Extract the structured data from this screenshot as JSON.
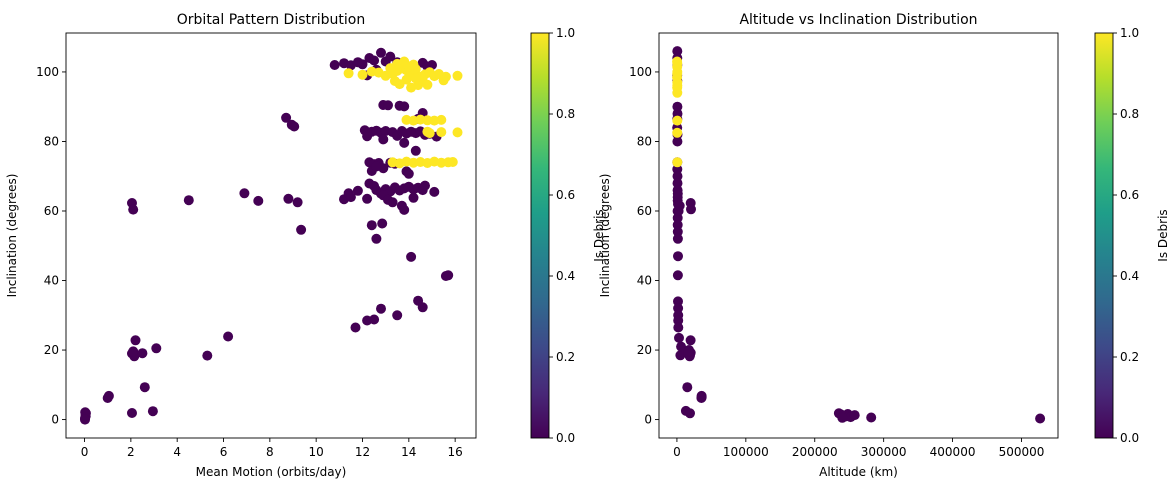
{
  "chart_data": [
    {
      "type": "scatter",
      "title": "Orbital Pattern Distribution",
      "xlabel": "Mean Motion (orbits/day)",
      "ylabel": "Inclination (degrees)",
      "xlim": [
        -0.8,
        16.9
      ],
      "ylim": [
        -5.3,
        111.2
      ],
      "xticks": [
        0,
        2,
        4,
        6,
        8,
        10,
        12,
        14,
        16
      ],
      "yticks": [
        0,
        20,
        40,
        60,
        80,
        100
      ],
      "colorbar": {
        "label": "Is Debris",
        "min": 0.0,
        "max": 1.0,
        "ticks": [
          "0.0",
          "0.2",
          "0.4",
          "0.6",
          "0.8",
          "1.0"
        ]
      },
      "grid": false,
      "series": [
        {
          "is_debris": 0,
          "color": "#440154",
          "points": [
            [
              0.02,
              0.3
            ],
            [
              0.03,
              0.6
            ],
            [
              0.05,
              1.0
            ],
            [
              0.04,
              1.4
            ],
            [
              0.06,
              1.8
            ],
            [
              0.03,
              2.1
            ],
            [
              0.02,
              0.0
            ],
            [
              1.0,
              6.2
            ],
            [
              1.05,
              6.8
            ],
            [
              2.05,
              19.0
            ],
            [
              2.15,
              18.2
            ],
            [
              2.1,
              19.6
            ],
            [
              2.2,
              22.8
            ],
            [
              2.5,
              19.1
            ],
            [
              2.6,
              9.3
            ],
            [
              2.05,
              1.9
            ],
            [
              2.95,
              2.4
            ],
            [
              3.1,
              20.5
            ],
            [
              5.3,
              18.4
            ],
            [
              6.2,
              23.9
            ],
            [
              2.05,
              62.3
            ],
            [
              2.1,
              60.4
            ],
            [
              4.5,
              63.1
            ],
            [
              6.9,
              65.1
            ],
            [
              7.5,
              62.9
            ],
            [
              8.8,
              63.5
            ],
            [
              9.2,
              62.5
            ],
            [
              9.35,
              54.6
            ],
            [
              8.7,
              86.8
            ],
            [
              8.95,
              84.8
            ],
            [
              9.05,
              84.3
            ],
            [
              11.7,
              26.5
            ],
            [
              12.2,
              28.5
            ],
            [
              12.5,
              28.8
            ],
            [
              12.8,
              31.9
            ],
            [
              13.5,
              30.0
            ],
            [
              14.4,
              34.2
            ],
            [
              14.6,
              32.3
            ],
            [
              14.1,
              46.8
            ],
            [
              15.6,
              41.3
            ],
            [
              15.7,
              41.5
            ],
            [
              11.2,
              63.4
            ],
            [
              11.4,
              65.1
            ],
            [
              11.5,
              64.0
            ],
            [
              11.8,
              65.8
            ],
            [
              12.2,
              63.5
            ],
            [
              12.3,
              67.9
            ],
            [
              12.5,
              67.2
            ],
            [
              12.6,
              66.0
            ],
            [
              12.8,
              65.0
            ],
            [
              13.0,
              66.3
            ],
            [
              13.2,
              65.6
            ],
            [
              13.4,
              66.8
            ],
            [
              13.6,
              65.9
            ],
            [
              13.8,
              66.5
            ],
            [
              14.0,
              67.0
            ],
            [
              14.2,
              66.2
            ],
            [
              14.4,
              66.7
            ],
            [
              14.6,
              66.0
            ],
            [
              14.7,
              67.3
            ],
            [
              12.9,
              64.5
            ],
            [
              13.1,
              63.2
            ],
            [
              13.3,
              62.5
            ],
            [
              13.7,
              61.5
            ],
            [
              13.8,
              60.3
            ],
            [
              14.2,
              63.8
            ],
            [
              15.1,
              65.5
            ],
            [
              12.4,
              55.9
            ],
            [
              12.6,
              52.0
            ],
            [
              12.85,
              56.4
            ],
            [
              12.3,
              74.0
            ],
            [
              12.5,
              73.5
            ],
            [
              12.7,
              73.8
            ],
            [
              12.9,
              72.3
            ],
            [
              13.2,
              73.9
            ],
            [
              13.4,
              73.6
            ],
            [
              13.9,
              71.4
            ],
            [
              14.0,
              70.7
            ],
            [
              12.4,
              71.5
            ],
            [
              12.6,
              72.8
            ],
            [
              12.1,
              83.2
            ],
            [
              12.2,
              81.5
            ],
            [
              12.4,
              82.8
            ],
            [
              12.6,
              83.1
            ],
            [
              12.8,
              82.5
            ],
            [
              13.0,
              83.0
            ],
            [
              13.3,
              82.7
            ],
            [
              13.5,
              81.6
            ],
            [
              13.7,
              83.0
            ],
            [
              13.9,
              82.3
            ],
            [
              14.1,
              82.8
            ],
            [
              14.3,
              82.4
            ],
            [
              14.5,
              82.9
            ],
            [
              14.7,
              81.9
            ],
            [
              14.9,
              82.2
            ],
            [
              15.2,
              81.4
            ],
            [
              12.9,
              80.6
            ],
            [
              13.8,
              79.6
            ],
            [
              14.3,
              77.3
            ],
            [
              14.6,
              88.2
            ],
            [
              14.4,
              86.5
            ],
            [
              12.9,
              90.5
            ],
            [
              13.1,
              90.4
            ],
            [
              13.6,
              90.3
            ],
            [
              13.8,
              90.1
            ],
            [
              10.8,
              102.0
            ],
            [
              11.2,
              102.5
            ],
            [
              11.5,
              101.9
            ],
            [
              11.8,
              102.8
            ],
            [
              12.0,
              102.2
            ],
            [
              12.3,
              104.0
            ],
            [
              12.5,
              103.3
            ],
            [
              12.8,
              105.5
            ],
            [
              13.0,
              103.0
            ],
            [
              13.2,
              104.4
            ],
            [
              13.5,
              102.8
            ],
            [
              12.2,
              99.0
            ],
            [
              12.6,
              100.6
            ],
            [
              14.6,
              102.6
            ],
            [
              14.8,
              101.6
            ],
            [
              15.0,
              102.0
            ]
          ]
        },
        {
          "is_debris": 1,
          "color": "#fde725",
          "points": [
            [
              11.4,
              99.6
            ],
            [
              12.0,
              99.2
            ],
            [
              12.4,
              100.1
            ],
            [
              12.7,
              99.8
            ],
            [
              13.0,
              98.9
            ],
            [
              13.3,
              99.5
            ],
            [
              13.5,
              100.3
            ],
            [
              13.7,
              101.0
            ],
            [
              13.9,
              100.5
            ],
            [
              14.1,
              99.7
            ],
            [
              14.3,
              100.8
            ],
            [
              14.5,
              98.6
            ],
            [
              14.7,
              99.3
            ],
            [
              14.9,
              99.9
            ],
            [
              15.1,
              98.8
            ],
            [
              15.3,
              99.4
            ],
            [
              15.6,
              98.6
            ],
            [
              16.1,
              98.9
            ],
            [
              13.4,
              97.4
            ],
            [
              13.6,
              96.5
            ],
            [
              13.9,
              97.8
            ],
            [
              14.1,
              95.5
            ],
            [
              14.4,
              96.2
            ],
            [
              14.6,
              97.5
            ],
            [
              14.8,
              96.3
            ],
            [
              13.5,
              102.3
            ],
            [
              13.8,
              103.0
            ],
            [
              14.2,
              102.1
            ],
            [
              14.0,
              101.6
            ],
            [
              13.2,
              101.1
            ],
            [
              15.5,
              97.6
            ],
            [
              14.3,
              98.1
            ],
            [
              13.3,
              74.0
            ],
            [
              13.6,
              73.7
            ],
            [
              13.9,
              74.2
            ],
            [
              14.2,
              73.9
            ],
            [
              14.5,
              74.1
            ],
            [
              14.8,
              73.8
            ],
            [
              15.1,
              74.2
            ],
            [
              15.4,
              73.9
            ],
            [
              15.7,
              74.0
            ],
            [
              15.9,
              74.1
            ],
            [
              13.9,
              86.2
            ],
            [
              14.2,
              86.0
            ],
            [
              14.5,
              86.3
            ],
            [
              14.8,
              86.1
            ],
            [
              15.1,
              86.0
            ],
            [
              15.4,
              86.2
            ],
            [
              14.9,
              82.4
            ],
            [
              15.4,
              82.7
            ],
            [
              16.1,
              82.6
            ],
            [
              14.8,
              82.8
            ]
          ]
        }
      ]
    },
    {
      "type": "scatter",
      "title": "Altitude vs Inclination Distribution",
      "xlabel": "Altitude (km)",
      "ylabel": "Inclination (degrees)",
      "xlim": [
        -26000,
        553000
      ],
      "ylim": [
        -5.3,
        111.2
      ],
      "xticks": [
        0,
        100000,
        200000,
        300000,
        400000,
        500000
      ],
      "yticks": [
        0,
        20,
        40,
        60,
        80,
        100
      ],
      "colorbar": {
        "label": "Is Debris",
        "min": 0.0,
        "max": 1.0,
        "ticks": [
          "0.0",
          "0.2",
          "0.4",
          "0.6",
          "0.8",
          "1.0"
        ]
      },
      "grid": false,
      "series": [
        {
          "is_debris": 0,
          "color": "#440154",
          "points": [
            [
              500,
              106.0
            ],
            [
              500,
              104.0
            ],
            [
              500,
              102.0
            ],
            [
              400,
              99.0
            ],
            [
              600,
              97.5
            ],
            [
              700,
              90.0
            ],
            [
              800,
              88.0
            ],
            [
              500,
              86.5
            ],
            [
              400,
              84.0
            ],
            [
              900,
              82.0
            ],
            [
              700,
              80.0
            ],
            [
              500,
              74.0
            ],
            [
              600,
              72.0
            ],
            [
              800,
              70.0
            ],
            [
              900,
              68.0
            ],
            [
              1000,
              66.0
            ],
            [
              1100,
              64.0
            ],
            [
              1200,
              63.0
            ],
            [
              1300,
              65.0
            ],
            [
              1500,
              62.0
            ],
            [
              1000,
              60.0
            ],
            [
              1100,
              58.0
            ],
            [
              1200,
              56.0
            ],
            [
              1300,
              54.0
            ],
            [
              1400,
              52.0
            ],
            [
              1500,
              47.0
            ],
            [
              1400,
              41.5
            ],
            [
              1600,
              34.0
            ],
            [
              1700,
              32.0
            ],
            [
              1800,
              30.0
            ],
            [
              1900,
              28.5
            ],
            [
              2000,
              26.5
            ],
            [
              3000,
              23.5
            ],
            [
              5000,
              18.5
            ],
            [
              6000,
              21.0
            ],
            [
              2500,
              60.0
            ],
            [
              4000,
              61.5
            ],
            [
              20000,
              62.3
            ],
            [
              20500,
              60.5
            ],
            [
              19000,
              18.5
            ],
            [
              20000,
              19.2
            ],
            [
              19800,
              22.8
            ],
            [
              17500,
              20.0
            ],
            [
              18500,
              18.2
            ],
            [
              16000,
              19.5
            ],
            [
              15000,
              9.3
            ],
            [
              13000,
              2.5
            ],
            [
              19000,
              1.8
            ],
            [
              35500,
              6.2
            ],
            [
              35800,
              6.8
            ],
            [
              36000,
              6.5
            ],
            [
              235000,
              1.8
            ],
            [
              238000,
              1.5
            ],
            [
              242000,
              1.2
            ],
            [
              245000,
              0.9
            ],
            [
              248000,
              1.6
            ],
            [
              250000,
              1.0
            ],
            [
              252000,
              0.7
            ],
            [
              258000,
              1.3
            ],
            [
              240000,
              0.5
            ],
            [
              282000,
              0.6
            ],
            [
              527000,
              0.3
            ]
          ]
        },
        {
          "is_debris": 1,
          "color": "#fde725",
          "points": [
            [
              300,
              103.0
            ],
            [
              400,
              101.5
            ],
            [
              500,
              100.0
            ],
            [
              300,
              98.5
            ],
            [
              600,
              97.0
            ],
            [
              400,
              95.5
            ],
            [
              500,
              94.0
            ],
            [
              400,
              99.5
            ],
            [
              600,
              102.5
            ],
            [
              500,
              86.0
            ],
            [
              400,
              82.5
            ],
            [
              500,
              74.0
            ],
            [
              600,
              96.0
            ]
          ]
        }
      ]
    }
  ]
}
